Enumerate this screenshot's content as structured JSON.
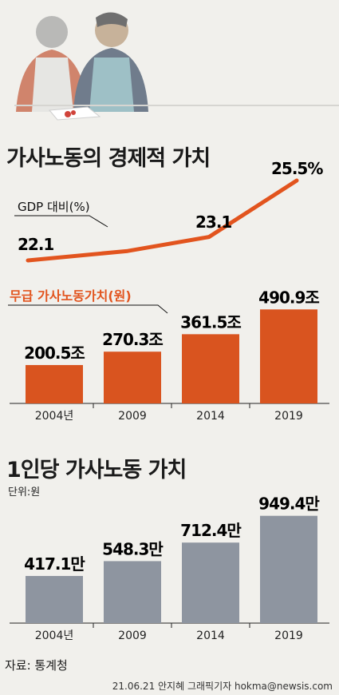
{
  "colors": {
    "accent": "#e2541e",
    "bar1": "#d9541f",
    "bar2": "#8e95a0",
    "background": "#f1f0ec"
  },
  "illustration": {
    "icon": "cooking-people-icon"
  },
  "chart_data": [
    {
      "type": "line",
      "title": "가사노동의 경제적 가치",
      "series_label": "GDP 대비(%)",
      "x": [
        "2004",
        "2009",
        "2014",
        "2019"
      ],
      "values": [
        22.1,
        null,
        23.1,
        25.5
      ],
      "labels": [
        "22.1",
        "",
        "23.1",
        "25.5%"
      ]
    },
    {
      "type": "bar",
      "series_label": "무급 가사노동가치(원)",
      "categories": [
        "2004년",
        "2009",
        "2014",
        "2019"
      ],
      "values": [
        200.5,
        270.3,
        361.5,
        490.9
      ],
      "labels": [
        "200.5조",
        "270.3조",
        "361.5조",
        "490.9조"
      ],
      "unit": "조"
    },
    {
      "type": "bar",
      "title": "1인당 가사노동 가치",
      "subtitle": "단위:원",
      "categories": [
        "2004년",
        "2009",
        "2014",
        "2019"
      ],
      "values": [
        417.1,
        548.3,
        712.4,
        949.4
      ],
      "labels": [
        "417.1만",
        "548.3만",
        "712.4만",
        "949.4만"
      ],
      "unit": "만"
    }
  ],
  "footer": {
    "source": "자료: 통계청",
    "credit": "21.06.21 안지혜 그래픽기자 hokma@newsis.com"
  }
}
